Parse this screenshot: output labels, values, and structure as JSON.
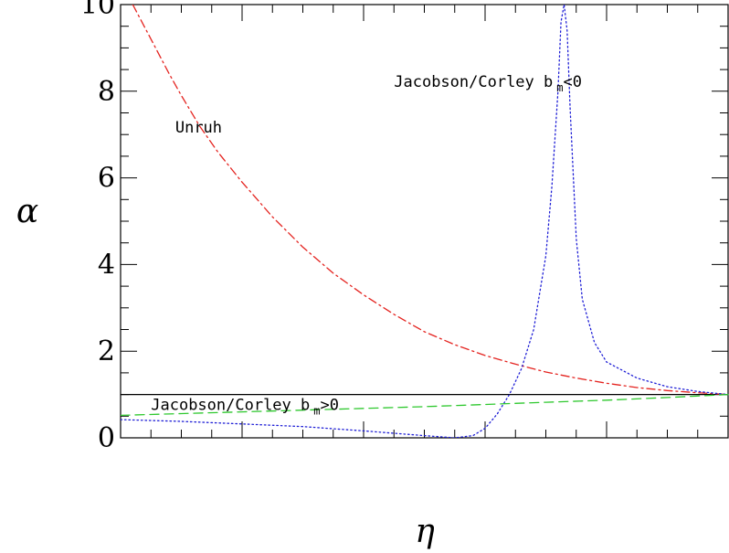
{
  "chart_data": {
    "type": "line",
    "title": "",
    "xlabel": "η",
    "ylabel": "α",
    "xlim": [
      0,
      1
    ],
    "ylim": [
      0,
      10
    ],
    "yticks": [
      0,
      2,
      4,
      6,
      8,
      10
    ],
    "yticks_minor_step": 0.5,
    "xticks_major": [
      0,
      0.2,
      0.4,
      0.6,
      0.8,
      1.0
    ],
    "xticks_minor_step": 0.05,
    "x_tick_labels_shown": false,
    "grid": false,
    "reference_line": {
      "y": 1.0,
      "color": "#000000",
      "style": "solid"
    },
    "series": [
      {
        "name": "",
        "color": "#e4231f",
        "style": "dashdot",
        "x": [
          0.02,
          0.05,
          0.08,
          0.1,
          0.13,
          0.16,
          0.2,
          0.25,
          0.3,
          0.35,
          0.4,
          0.45,
          0.5,
          0.55,
          0.6,
          0.65,
          0.7,
          0.75,
          0.8,
          0.85,
          0.9,
          0.95,
          1.0
        ],
        "y": [
          10.0,
          9.2,
          8.4,
          7.9,
          7.2,
          6.6,
          5.9,
          5.1,
          4.4,
          3.8,
          3.3,
          2.85,
          2.45,
          2.15,
          1.9,
          1.7,
          1.52,
          1.38,
          1.26,
          1.16,
          1.09,
          1.04,
          1.0
        ]
      },
      {
        "name": "",
        "color": "#1f1fd6",
        "style": "dotted",
        "x": [
          0.0,
          0.1,
          0.2,
          0.3,
          0.4,
          0.5,
          0.55,
          0.58,
          0.6,
          0.62,
          0.64,
          0.66,
          0.68,
          0.7,
          0.71,
          0.72,
          0.725,
          0.73,
          0.735,
          0.74,
          0.75,
          0.76,
          0.78,
          0.8,
          0.85,
          0.9,
          0.95,
          1.0
        ],
        "y": [
          0.42,
          0.38,
          0.32,
          0.26,
          0.16,
          0.05,
          0.0,
          0.05,
          0.22,
          0.55,
          1.0,
          1.6,
          2.5,
          4.2,
          5.8,
          8.0,
          9.6,
          10.0,
          9.4,
          7.6,
          4.6,
          3.2,
          2.2,
          1.75,
          1.38,
          1.18,
          1.07,
          1.0
        ]
      },
      {
        "name": "",
        "color": "#2ec82e",
        "style": "dashed",
        "x": [
          0.0,
          0.1,
          0.2,
          0.3,
          0.4,
          0.5,
          0.6,
          0.7,
          0.8,
          0.9,
          1.0
        ],
        "y": [
          0.52,
          0.56,
          0.6,
          0.64,
          0.68,
          0.72,
          0.77,
          0.82,
          0.87,
          0.93,
          1.0
        ]
      }
    ],
    "annotations": [
      {
        "text": "Unruh",
        "x": 0.09,
        "y": 7.05
      },
      {
        "text": "Jacobson/Corley b",
        "sub": "m",
        "rest": "<0",
        "x": 0.45,
        "y": 8.1
      },
      {
        "text": "Jacobson/Corley b",
        "sub": "m",
        "rest": ">0",
        "x": 0.05,
        "y": 0.64
      }
    ]
  }
}
